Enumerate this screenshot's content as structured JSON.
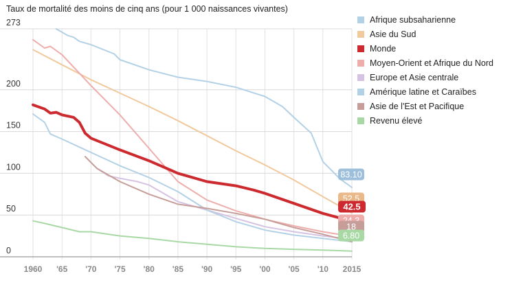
{
  "chart_data": {
    "type": "line",
    "title": "Taux de mortalité des moins de cinq ans (pour 1 000 naissances vivantes)",
    "xlabel": "",
    "ylabel": "",
    "xlim": [
      1960,
      2015
    ],
    "ylim": [
      0,
      273
    ],
    "y_ticks": [
      {
        "value": 0,
        "label": "0"
      },
      {
        "value": 50,
        "label": "50"
      },
      {
        "value": 100,
        "label": "100"
      },
      {
        "value": 150,
        "label": "150"
      },
      {
        "value": 200,
        "label": "200"
      },
      {
        "value": 273,
        "label": "273"
      }
    ],
    "x_ticks": [
      {
        "value": 1960,
        "label": "1960"
      },
      {
        "value": 1965,
        "label": "'65"
      },
      {
        "value": 1970,
        "label": "'70"
      },
      {
        "value": 1975,
        "label": "'75"
      },
      {
        "value": 1980,
        "label": "'80"
      },
      {
        "value": 1985,
        "label": "'85"
      },
      {
        "value": 1990,
        "label": "'90"
      },
      {
        "value": 1995,
        "label": "'95"
      },
      {
        "value": 2000,
        "label": "'00"
      },
      {
        "value": 2005,
        "label": "'05"
      },
      {
        "value": 2010,
        "label": "'10"
      },
      {
        "value": 2015,
        "label": "2015"
      }
    ],
    "grid": true,
    "legend_position": "right",
    "series": [
      {
        "name": "Afrique subsaharienne",
        "color": "#b3d1e6",
        "stroke_width": "thin",
        "end_label": "83.10",
        "label_color": "#9dbfdb",
        "points": [
          [
            1964,
            273
          ],
          [
            1966,
            265
          ],
          [
            1967,
            263
          ],
          [
            1968,
            258
          ],
          [
            1970,
            254
          ],
          [
            1974,
            243
          ],
          [
            1975,
            236
          ],
          [
            1980,
            224
          ],
          [
            1985,
            215
          ],
          [
            1990,
            210
          ],
          [
            1995,
            203
          ],
          [
            2000,
            192
          ],
          [
            2003,
            180
          ],
          [
            2005,
            167
          ],
          [
            2008,
            148
          ],
          [
            2010,
            114
          ],
          [
            2013,
            93
          ],
          [
            2015,
            83.1
          ]
        ]
      },
      {
        "name": "Asie du Sud",
        "color": "#f0c99d",
        "stroke_width": "thin",
        "end_label": "52.5",
        "label_color": "#eab98a",
        "points": [
          [
            1960,
            248
          ],
          [
            1965,
            230
          ],
          [
            1970,
            212
          ],
          [
            1975,
            196
          ],
          [
            1980,
            180
          ],
          [
            1985,
            163
          ],
          [
            1990,
            145
          ],
          [
            1995,
            127
          ],
          [
            2000,
            110
          ],
          [
            2005,
            92
          ],
          [
            2010,
            72
          ],
          [
            2015,
            52.5
          ]
        ]
      },
      {
        "name": "Monde",
        "color": "#cc2a2f",
        "stroke_width": "thick",
        "end_label": "42.5",
        "label_color": "#cc2a2f",
        "points": [
          [
            1960,
            182
          ],
          [
            1962,
            177
          ],
          [
            1963,
            172
          ],
          [
            1964,
            173
          ],
          [
            1965,
            170
          ],
          [
            1967,
            167
          ],
          [
            1968,
            161
          ],
          [
            1969,
            148
          ],
          [
            1970,
            142
          ],
          [
            1975,
            128
          ],
          [
            1980,
            115
          ],
          [
            1985,
            100
          ],
          [
            1990,
            90
          ],
          [
            1995,
            85
          ],
          [
            1998,
            80
          ],
          [
            2000,
            76
          ],
          [
            2005,
            64
          ],
          [
            2010,
            52
          ],
          [
            2015,
            42.5
          ]
        ]
      },
      {
        "name": "Moyen-Orient et Afrique du Nord",
        "color": "#eeadab",
        "stroke_width": "thin",
        "end_label": "24.3",
        "label_color": "#eeadab",
        "points": [
          [
            1960,
            260
          ],
          [
            1962,
            250
          ],
          [
            1963,
            252
          ],
          [
            1965,
            242
          ],
          [
            1970,
            205
          ],
          [
            1975,
            170
          ],
          [
            1980,
            130
          ],
          [
            1985,
            90
          ],
          [
            1990,
            68
          ],
          [
            1995,
            55
          ],
          [
            2000,
            45
          ],
          [
            2005,
            37
          ],
          [
            2010,
            30
          ],
          [
            2015,
            24.3
          ]
        ]
      },
      {
        "name": "Europe et Asie centrale",
        "color": "#d6c2e2",
        "stroke_width": "thin",
        "end_label": "",
        "label_color": "#d6c2e2",
        "points": [
          [
            1971,
            106
          ],
          [
            1973,
            97
          ],
          [
            1975,
            94
          ],
          [
            1978,
            90
          ],
          [
            1980,
            86
          ],
          [
            1985,
            66
          ],
          [
            1990,
            56
          ],
          [
            1995,
            46
          ],
          [
            2000,
            36
          ],
          [
            2005,
            30
          ],
          [
            2010,
            25
          ],
          [
            2015,
            21
          ]
        ]
      },
      {
        "name": "Amérique latine et Caraïbes",
        "color": "#b3d1e6",
        "stroke_width": "thin",
        "end_label": "",
        "label_color": "#9dbfdb",
        "points": [
          [
            1960,
            171
          ],
          [
            1962,
            161
          ],
          [
            1963,
            147
          ],
          [
            1965,
            141
          ],
          [
            1970,
            125
          ],
          [
            1975,
            109
          ],
          [
            1980,
            95
          ],
          [
            1985,
            78
          ],
          [
            1990,
            56
          ],
          [
            1995,
            42
          ],
          [
            2000,
            32
          ],
          [
            2005,
            26
          ],
          [
            2010,
            22
          ],
          [
            2015,
            18
          ]
        ]
      },
      {
        "name": "Asie de l'Est et Pacifique",
        "color": "#c69d98",
        "stroke_width": "thin",
        "end_label": "18",
        "label_color": "#c69d98",
        "points": [
          [
            1969,
            120
          ],
          [
            1971,
            106
          ],
          [
            1975,
            90
          ],
          [
            1980,
            75
          ],
          [
            1985,
            63
          ],
          [
            1990,
            58
          ],
          [
            1995,
            52
          ],
          [
            2000,
            45
          ],
          [
            2005,
            35
          ],
          [
            2010,
            27
          ],
          [
            2015,
            18
          ]
        ]
      },
      {
        "name": "Revenu élevé",
        "color": "#a8d9a4",
        "stroke_width": "thin",
        "end_label": "6.80",
        "label_color": "#a8d9a4",
        "points": [
          [
            1960,
            43
          ],
          [
            1962,
            40
          ],
          [
            1965,
            35
          ],
          [
            1968,
            30
          ],
          [
            1970,
            30
          ],
          [
            1975,
            25
          ],
          [
            1980,
            22
          ],
          [
            1985,
            18
          ],
          [
            1990,
            15
          ],
          [
            1995,
            12
          ],
          [
            2000,
            10
          ],
          [
            2005,
            9
          ],
          [
            2010,
            8
          ],
          [
            2015,
            6.8
          ]
        ]
      }
    ]
  }
}
